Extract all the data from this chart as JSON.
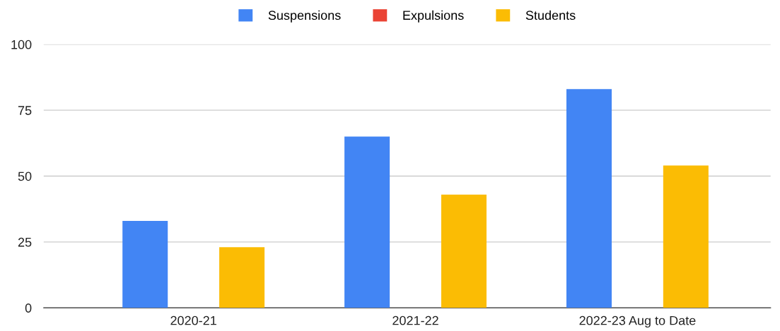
{
  "chart_data": {
    "type": "bar",
    "categories": [
      "2020-21",
      "2021-22",
      "2022-23 Aug to Date"
    ],
    "series": [
      {
        "name": "Suspensions",
        "color": "#4285f4",
        "values": [
          33,
          65,
          83
        ]
      },
      {
        "name": "Expulsions",
        "color": "#ea4335",
        "values": [
          0,
          0,
          0
        ]
      },
      {
        "name": "Students",
        "color": "#fbbc04",
        "values": [
          23,
          43,
          54
        ]
      }
    ],
    "ylim": [
      0,
      100
    ],
    "yticks": [
      0,
      25,
      50,
      75,
      100
    ],
    "grid": "y",
    "legend": "top"
  }
}
